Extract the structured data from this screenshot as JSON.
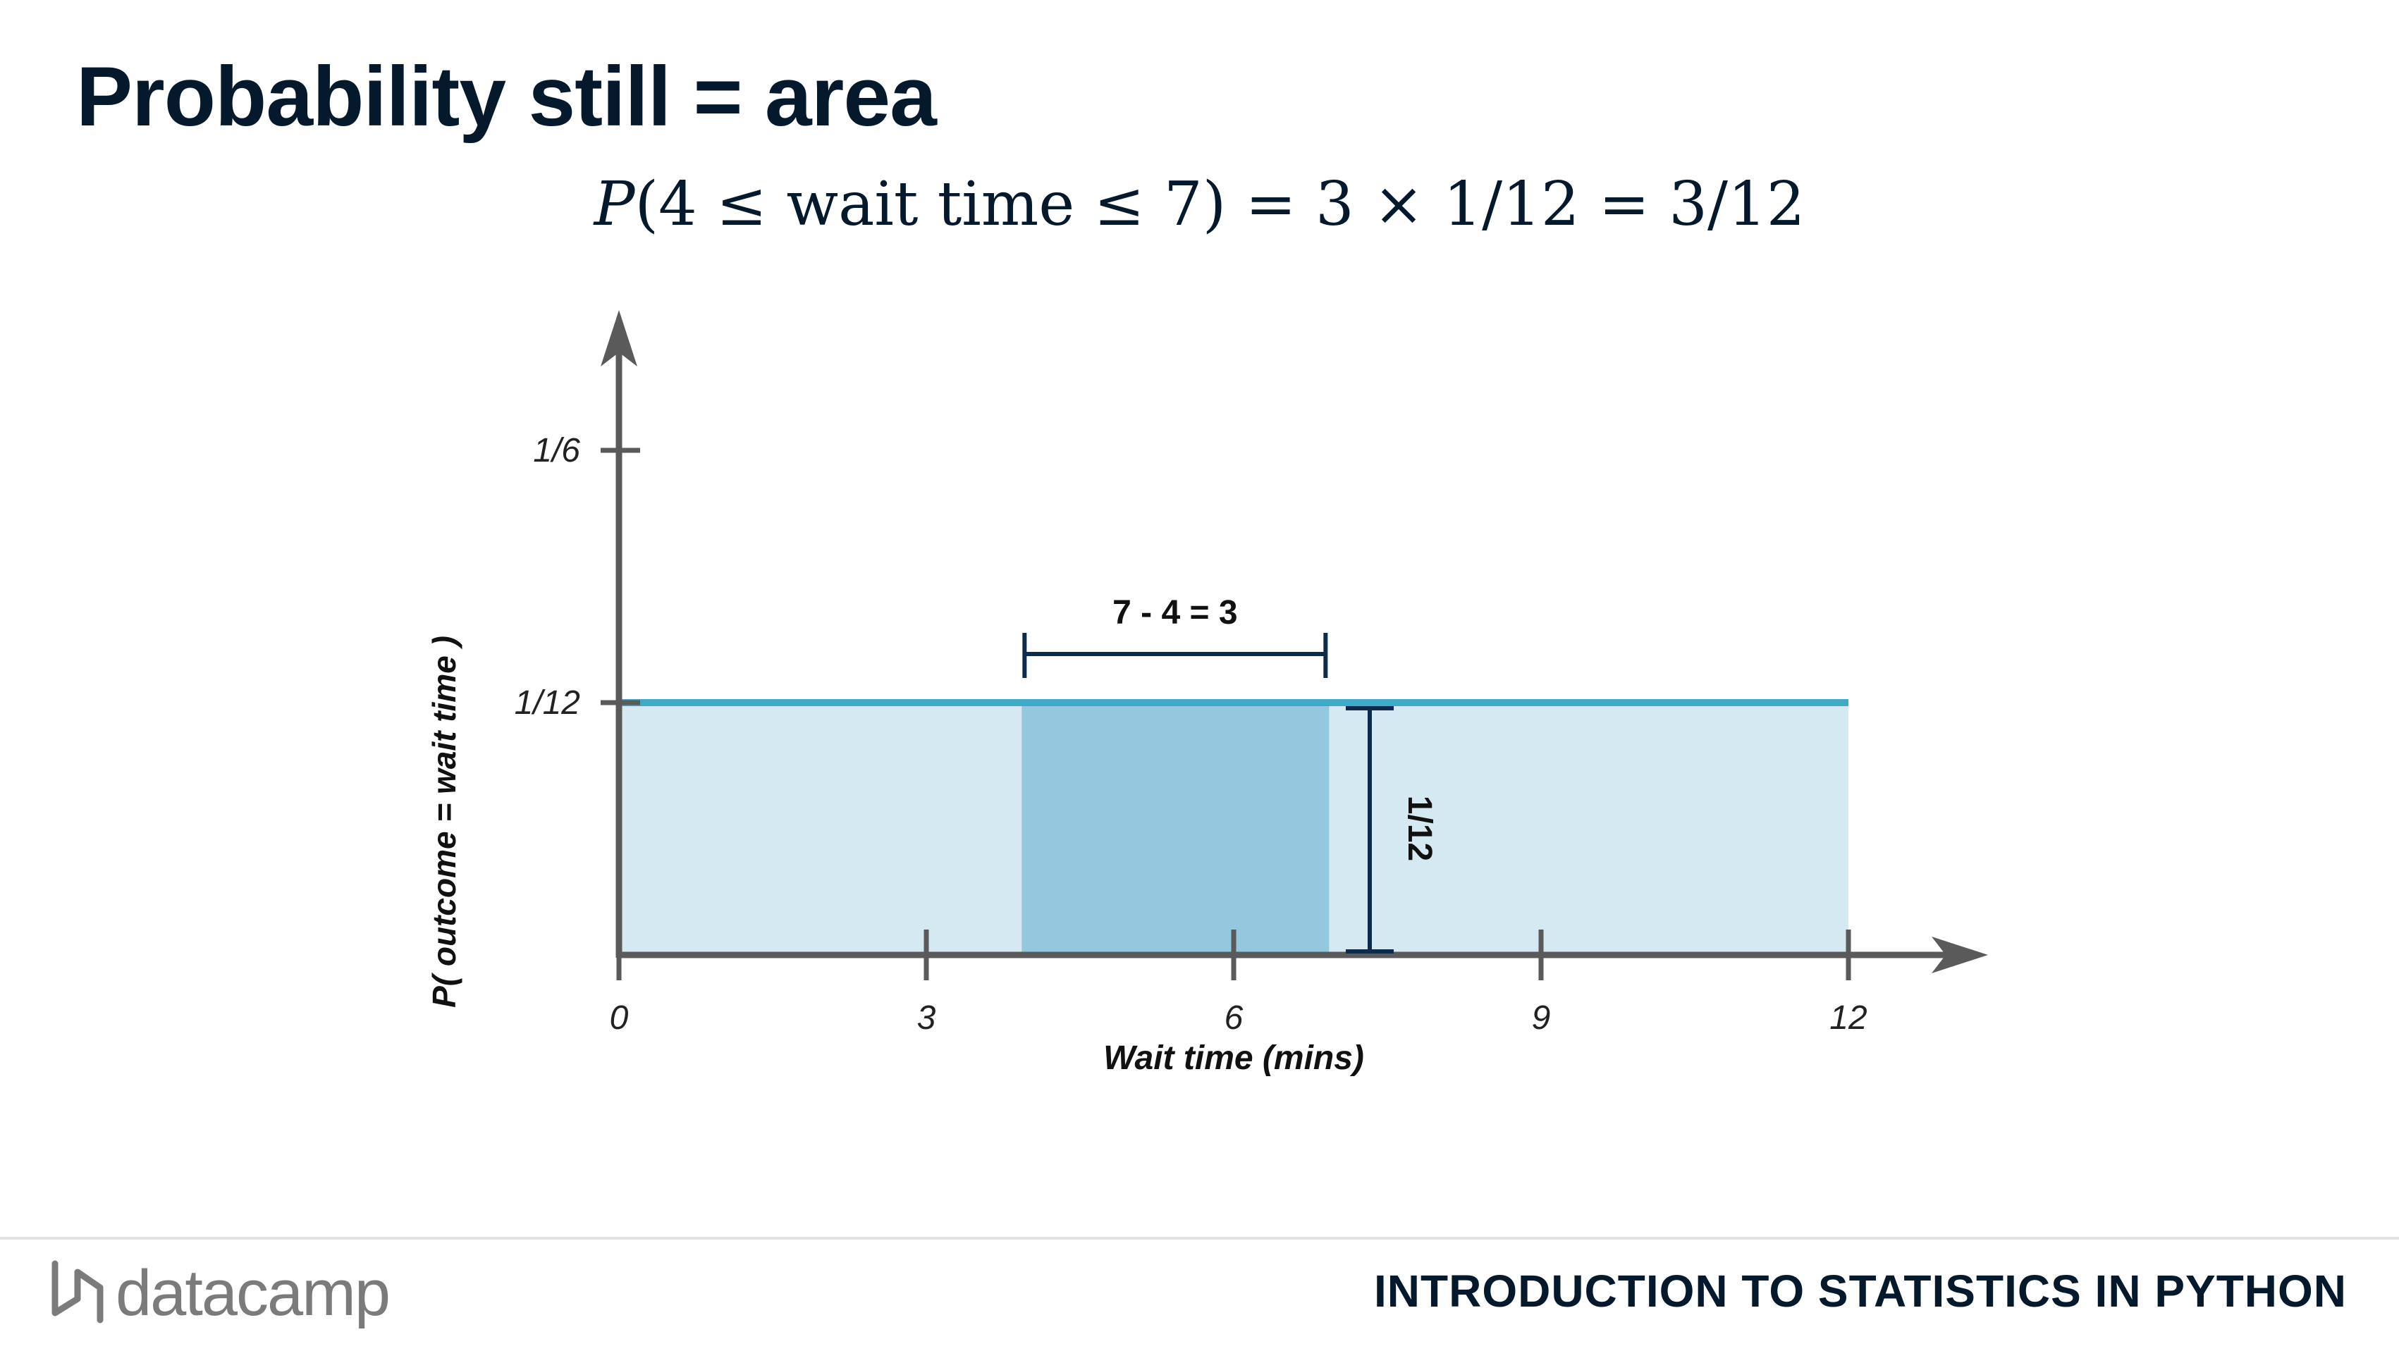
{
  "slide": {
    "title": "Probability still = area",
    "formula": {
      "p": "P",
      "rest": "(4 ≤ wait time ≤ 7) = 3 × 1/12 = 3/12"
    }
  },
  "chart_data": {
    "type": "area",
    "xlabel": "Wait time (mins)",
    "ylabel": "P( outcome  = wait time )",
    "x_ticks": [
      0,
      3,
      6,
      9,
      12
    ],
    "y_ticks": [
      {
        "value": 0.16667,
        "label": "1/6"
      },
      {
        "value": 0.08333,
        "label": "1/12"
      }
    ],
    "xlim": [
      0,
      13.3
    ],
    "ylim": [
      0,
      0.2
    ],
    "series": [
      {
        "x": [
          0,
          12
        ],
        "y": [
          0.08333,
          0.08333
        ]
      }
    ],
    "highlight": {
      "x_start": 4,
      "x_end": 7,
      "y": 0.08333
    },
    "annotations": {
      "width_label": "7 - 4 = 3",
      "height_label": "1/12"
    },
    "colors": {
      "axis": "#5a5a5a",
      "line": "#3fa9c8",
      "fill": "#d5e9f2",
      "highlight": "#93c8df",
      "annotation": "#0d2c4d"
    }
  },
  "footer": {
    "logo_text": "datacamp",
    "course": "INTRODUCTION TO STATISTICS IN PYTHON"
  }
}
